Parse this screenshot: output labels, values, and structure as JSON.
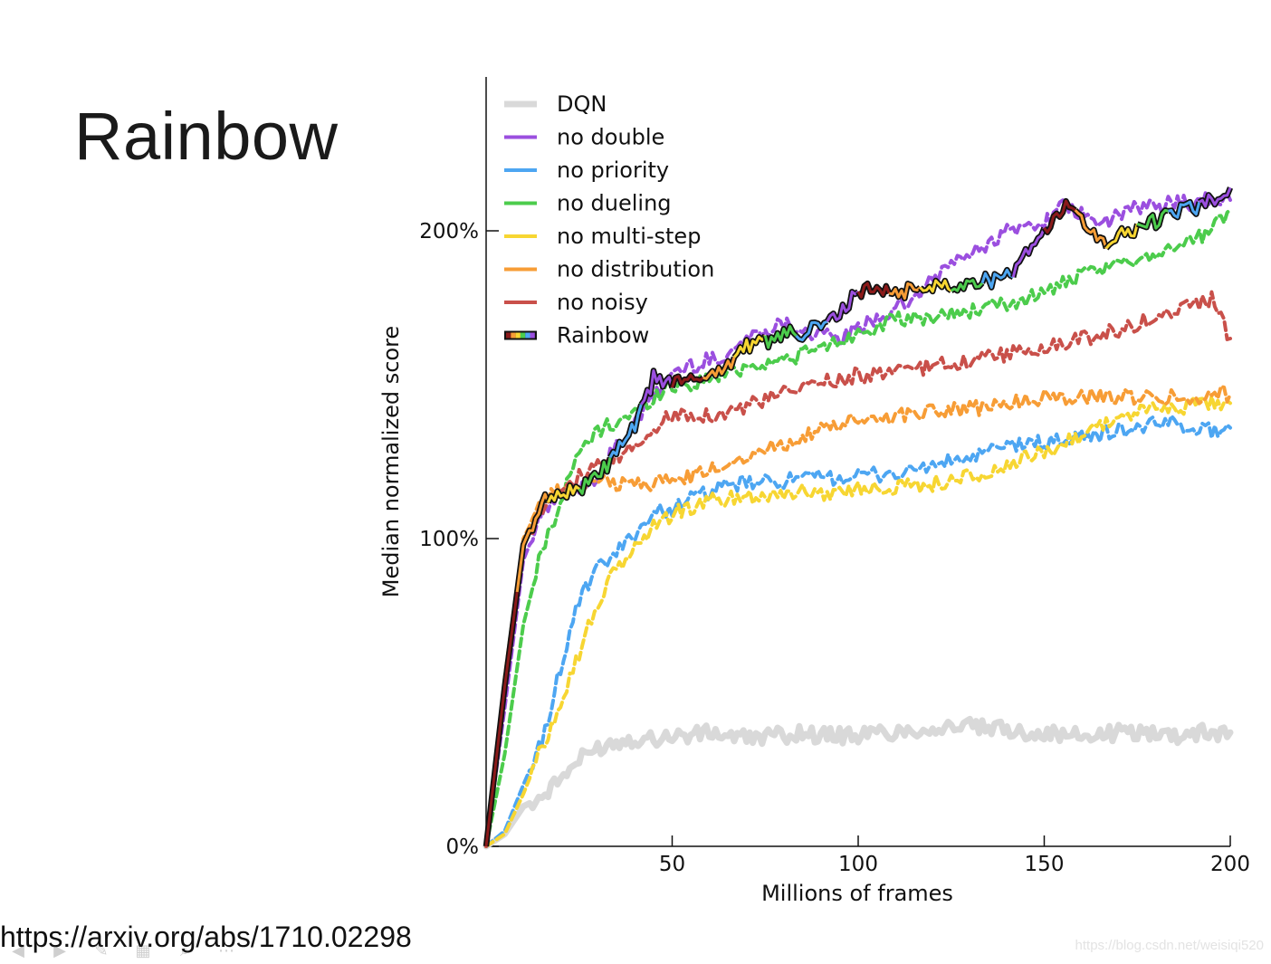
{
  "slide": {
    "title": "Rainbow",
    "source_link": "https://arxiv.org/abs/1710.02298",
    "watermark": "https://blog.csdn.net/weisiqi520"
  },
  "toolbar": {
    "icons": [
      "previous-icon",
      "next-icon",
      "pen-icon",
      "slides-icon",
      "zoom-icon",
      "more-icon"
    ],
    "glyphs": [
      "◀",
      "▶",
      "✎",
      "▦",
      "⌕",
      "⋯"
    ]
  },
  "chart_data": {
    "type": "line",
    "title": "",
    "xlabel": "Millions of frames",
    "ylabel": "Median normalized score",
    "xlim": [
      0,
      200
    ],
    "ylim": [
      0,
      250
    ],
    "x_ticks": [
      50,
      100,
      150,
      200
    ],
    "x_tick_labels": [
      "50",
      "100",
      "150",
      "200"
    ],
    "y_ticks": [
      0,
      100,
      200
    ],
    "y_tick_labels": [
      "0%",
      "100%",
      "200%"
    ],
    "grid": false,
    "legend_position": "top-left",
    "x": [
      0,
      5,
      10,
      15,
      20,
      25,
      30,
      35,
      40,
      45,
      50,
      55,
      60,
      65,
      70,
      75,
      80,
      85,
      90,
      95,
      100,
      105,
      110,
      115,
      120,
      125,
      130,
      135,
      140,
      145,
      150,
      155,
      160,
      165,
      170,
      175,
      180,
      185,
      190,
      195,
      200
    ],
    "series": [
      {
        "name": "DQN",
        "color": "#d9d9d9",
        "dash": "solid",
        "width": 7,
        "values": [
          0,
          4,
          13,
          16,
          22,
          28,
          32,
          34,
          35,
          35,
          36,
          36,
          37,
          36,
          35,
          36,
          36,
          37,
          36,
          36,
          36,
          37,
          37,
          38,
          38,
          39,
          39,
          38,
          38,
          37,
          37,
          36,
          36,
          36,
          37,
          37,
          37,
          36,
          37,
          37,
          37
        ]
      },
      {
        "name": "no double",
        "color": "#9b4fdf",
        "dash": "dashed",
        "width": 4,
        "values": [
          0,
          45,
          93,
          108,
          114,
          117,
          120,
          130,
          137,
          146,
          154,
          156,
          158,
          160,
          165,
          168,
          170,
          168,
          166,
          165,
          168,
          172,
          174,
          178,
          184,
          190,
          192,
          196,
          200,
          201,
          203,
          208,
          205,
          202,
          205,
          208,
          207,
          210,
          209,
          210,
          210
        ]
      },
      {
        "name": "no priority",
        "color": "#4da6f2",
        "dash": "dashed",
        "width": 4,
        "values": [
          0,
          5,
          20,
          34,
          58,
          80,
          90,
          95,
          102,
          108,
          110,
          113,
          115,
          117,
          118,
          118,
          119,
          119,
          120,
          120,
          120,
          121,
          121,
          122,
          124,
          125,
          126,
          128,
          130,
          131,
          131,
          132,
          133,
          134,
          135,
          136,
          137,
          138,
          136,
          135,
          136
        ]
      },
      {
        "name": "no dueling",
        "color": "#4ccc4c",
        "dash": "dashed",
        "width": 4,
        "values": [
          0,
          30,
          72,
          96,
          112,
          128,
          135,
          138,
          141,
          146,
          150,
          150,
          152,
          154,
          156,
          157,
          158,
          160,
          162,
          164,
          167,
          169,
          171,
          171,
          172,
          173,
          174,
          175,
          176,
          178,
          180,
          183,
          185,
          187,
          189,
          191,
          193,
          195,
          197,
          200,
          207
        ]
      },
      {
        "name": "no multi-step",
        "color": "#f7d632",
        "dash": "dashed",
        "width": 4,
        "values": [
          0,
          4,
          17,
          32,
          47,
          63,
          79,
          90,
          97,
          104,
          108,
          110,
          112,
          113,
          114,
          114,
          115,
          115,
          115,
          115,
          116,
          117,
          117,
          117,
          118,
          119,
          120,
          121,
          123,
          126,
          128,
          131,
          134,
          137,
          139,
          141,
          142,
          143,
          143,
          144,
          144
        ]
      },
      {
        "name": "no distribution",
        "color": "#f79d36",
        "dash": "dashed",
        "width": 4,
        "values": [
          0,
          55,
          100,
          112,
          116,
          117,
          118,
          118,
          118,
          118,
          119,
          120,
          122,
          125,
          127,
          129,
          131,
          133,
          135,
          137,
          138,
          139,
          140,
          141,
          142,
          142,
          142,
          143,
          144,
          145,
          146,
          146,
          146,
          146,
          146,
          146,
          146,
          146,
          146,
          147,
          147
        ]
      },
      {
        "name": "no noisy",
        "color": "#c9504a",
        "dash": "dashed",
        "width": 4,
        "values": [
          0,
          50,
          98,
          110,
          117,
          120,
          123,
          126,
          130,
          136,
          140,
          141,
          140,
          141,
          143,
          145,
          147,
          149,
          151,
          152,
          153,
          153,
          154,
          155,
          156,
          157,
          158,
          159,
          160,
          161,
          162,
          163,
          165,
          166,
          168,
          170,
          172,
          174,
          176,
          178,
          165
        ]
      },
      {
        "name": "Rainbow",
        "color": "#111111",
        "dash": "rainbow",
        "width": 4,
        "values": [
          0,
          52,
          98,
          112,
          115,
          116,
          120,
          128,
          136,
          152,
          151,
          151,
          154,
          156,
          163,
          164,
          166,
          167,
          169,
          173,
          180,
          181,
          180,
          181,
          182,
          183,
          183,
          184,
          185,
          192,
          200,
          208,
          204,
          196,
          198,
          201,
          203,
          206,
          207,
          210,
          214
        ]
      }
    ],
    "rainbow_colors": [
      "#8b1a1a",
      "#f79d36",
      "#f7d632",
      "#4ccc4c",
      "#4da6f2",
      "#9b4fdf"
    ]
  }
}
